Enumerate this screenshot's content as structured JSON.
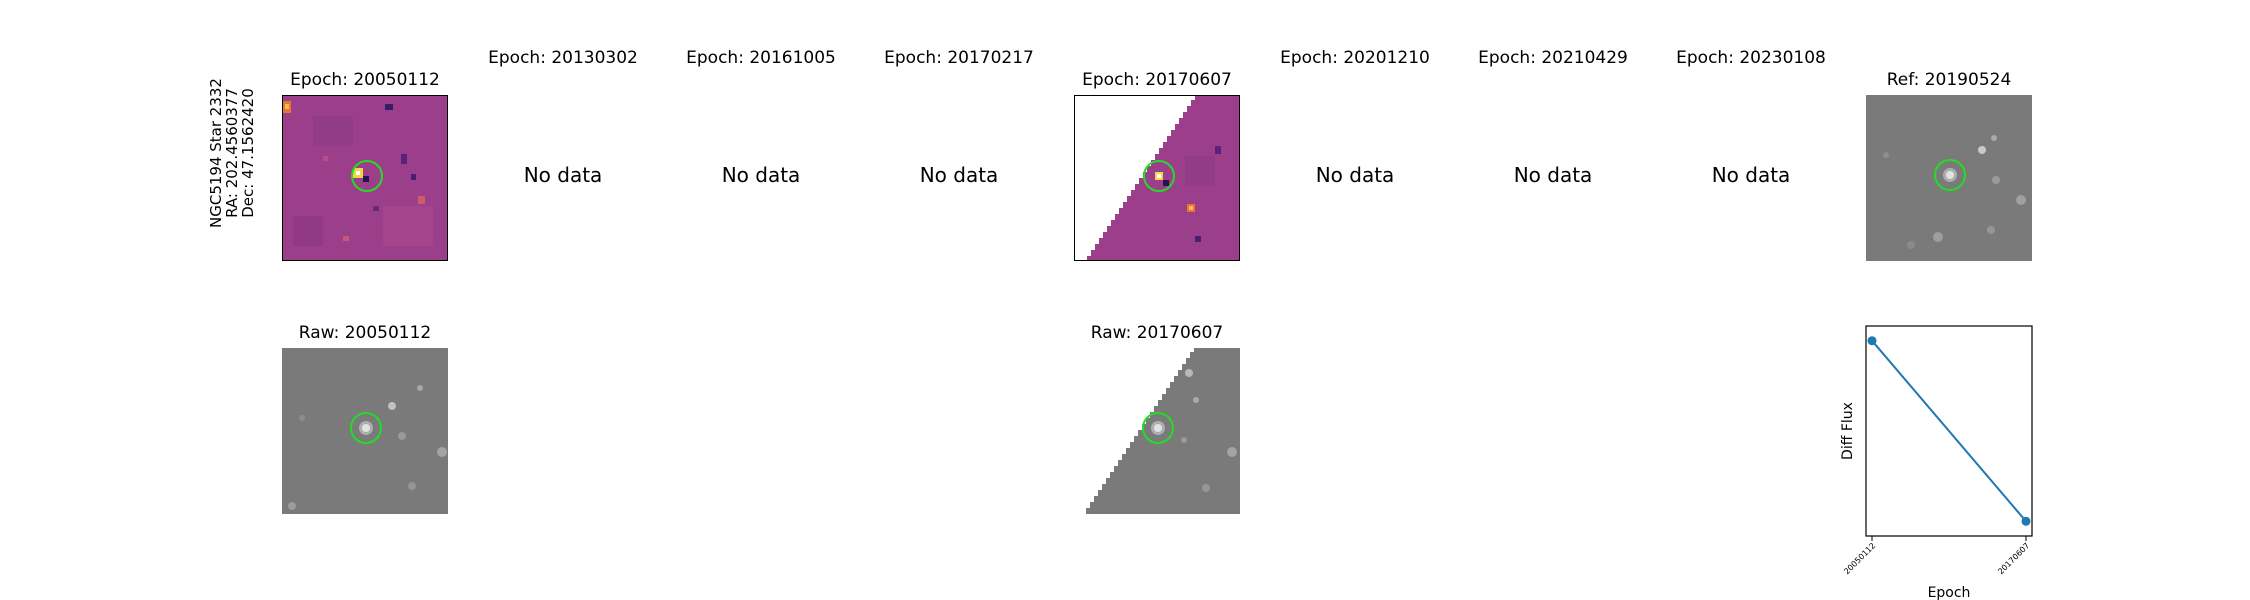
{
  "object_info": {
    "name": "NGC5194 Star 2332",
    "ra": "RA: 202.4560377",
    "dec": "Dec: 47.1562420"
  },
  "top_row": [
    {
      "title": "Epoch: 20050112",
      "kind": "diff"
    },
    {
      "title": "Epoch: 20130302",
      "kind": "nodata",
      "text": "No data"
    },
    {
      "title": "Epoch: 20161005",
      "kind": "nodata",
      "text": "No data"
    },
    {
      "title": "Epoch: 20170217",
      "kind": "nodata",
      "text": "No data"
    },
    {
      "title": "Epoch: 20170607",
      "kind": "diff"
    },
    {
      "title": "Epoch: 20201210",
      "kind": "nodata",
      "text": "No data"
    },
    {
      "title": "Epoch: 20210429",
      "kind": "nodata",
      "text": "No data"
    },
    {
      "title": "Epoch: 20230108",
      "kind": "nodata",
      "text": "No data"
    },
    {
      "title": "Ref: 20190524",
      "kind": "ref"
    }
  ],
  "bottom_row": [
    {
      "title": "Raw: 20050112"
    },
    {
      "title": "Raw: 20170607"
    }
  ],
  "colors": {
    "diff_background": "#9c3f8a",
    "marker_circle": "#22dd22",
    "raw_background": "#7a7a7a",
    "line": "#1f77b4"
  },
  "chart_data": {
    "type": "line",
    "title": "",
    "xlabel": "Epoch",
    "ylabel": "Diff Flux",
    "categories": [
      "20050112",
      "20170607"
    ],
    "series": [
      {
        "values": [
          1.0,
          0.0
        ]
      }
    ],
    "y_ticks_shown": false,
    "grid": false
  }
}
